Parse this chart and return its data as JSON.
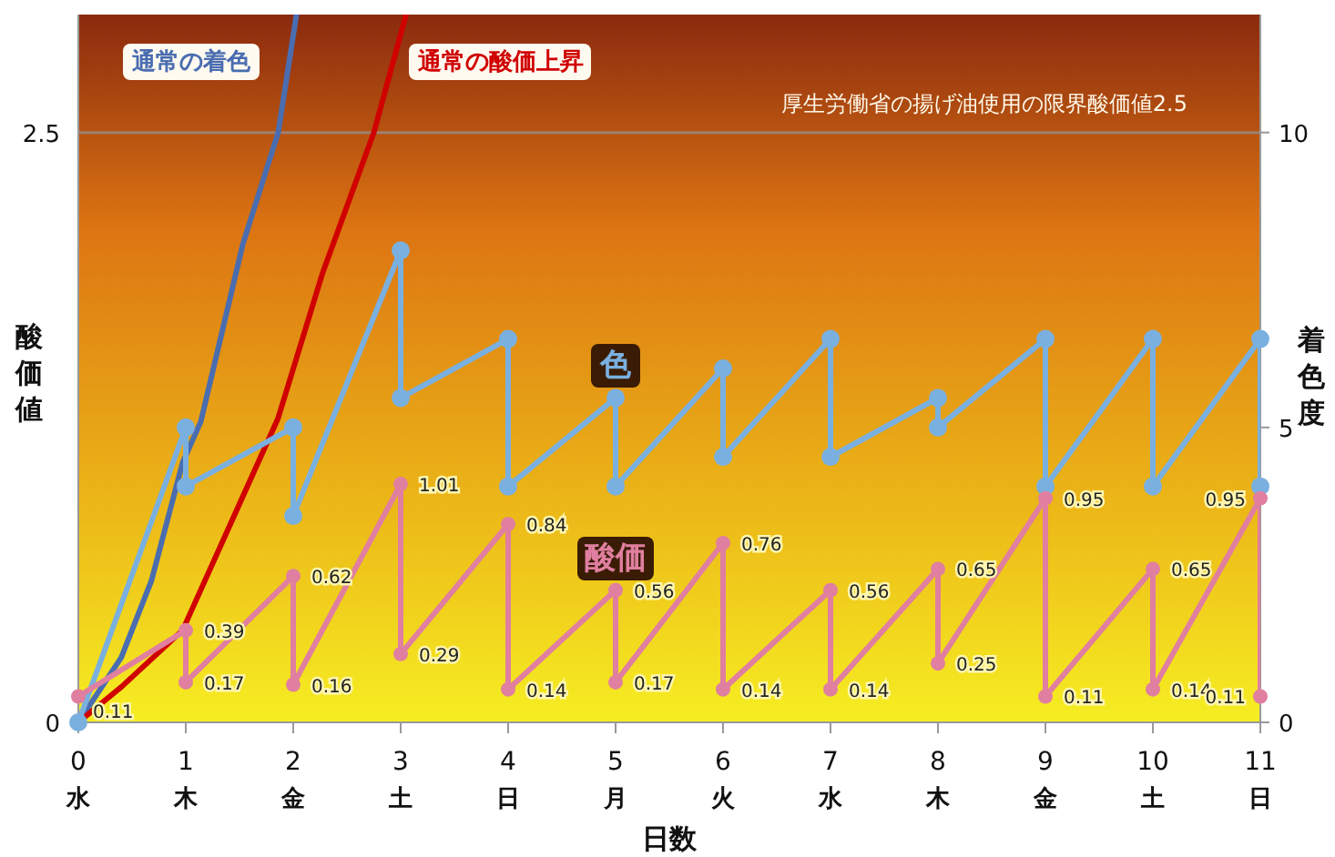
{
  "chart_data": {
    "type": "line",
    "xlabel": "日数",
    "ylabel": "酸価値",
    "y2label": "着色度",
    "xlim": [
      0,
      11
    ],
    "xticks": [
      {
        "value": 0,
        "label": "0\n水"
      },
      {
        "value": 1,
        "label": "1\n木"
      },
      {
        "value": 2,
        "label": "2\n金"
      },
      {
        "value": 3,
        "label": "3\n土"
      },
      {
        "value": 4,
        "label": "4\n日"
      },
      {
        "value": 5,
        "label": "5\n月"
      },
      {
        "value": 6,
        "label": "6\n火"
      },
      {
        "value": 7,
        "label": "7\n水"
      },
      {
        "value": 8,
        "label": "8\n木"
      },
      {
        "value": 9,
        "label": "9\n金"
      },
      {
        "value": 10,
        "label": "10\n土"
      },
      {
        "value": 11,
        "label": "11\n日"
      }
    ],
    "ylim": [
      0,
      3
    ],
    "yticks": [
      0,
      2.5
    ],
    "y2lim": [
      0,
      12
    ],
    "y2ticks": [
      0,
      5,
      10
    ],
    "grid": false,
    "legend": false,
    "ref_lines": [
      {
        "axis": "y",
        "value": 2.5,
        "label": "厚生労働省の揚げ油使用の限界酸価値2.5",
        "color": "#a08070"
      }
    ],
    "series": [
      {
        "name": "通常の着色",
        "color": "#4a6db0",
        "axis": "y2",
        "marker": "none",
        "x": [
          0,
          0.4,
          0.68,
          0.97,
          1.14,
          1.53,
          1.86,
          2.03
        ],
        "values": [
          0,
          1.1,
          2.4,
          4.4,
          5.1,
          8.1,
          10,
          12
        ]
      },
      {
        "name": "通常の酸価上昇",
        "color": "#d00000",
        "marker": "none",
        "x": [
          0,
          0.4,
          0.97,
          1.86,
          2.27,
          2.75,
          3.05
        ],
        "values": [
          0,
          0.15,
          0.39,
          1.29,
          1.9,
          2.5,
          3
        ]
      },
      {
        "name": "色",
        "color": "#7ab0e0",
        "axis": "y2",
        "marker": "circle",
        "x": [
          0,
          1,
          1,
          2,
          2,
          3,
          3,
          4,
          4,
          5,
          5,
          6,
          6,
          7,
          7,
          8,
          8,
          9,
          9,
          10,
          10,
          11,
          11
        ],
        "values": [
          0,
          5,
          4,
          5,
          3.5,
          8,
          5.5,
          6.5,
          4,
          5.5,
          4,
          6,
          4.5,
          6.5,
          4.5,
          5.5,
          5,
          6.5,
          4,
          6.5,
          4,
          6.5,
          4
        ]
      },
      {
        "name": "酸価",
        "color": "#e07fa0",
        "marker": "circle",
        "x": [
          0,
          1,
          1,
          2,
          2,
          3,
          3,
          4,
          4,
          5,
          5,
          6,
          6,
          7,
          7,
          8,
          8,
          9,
          9,
          10,
          10,
          11,
          11
        ],
        "values": [
          0.11,
          0.39,
          0.17,
          0.62,
          0.16,
          1.01,
          0.29,
          0.84,
          0.14,
          0.56,
          0.17,
          0.76,
          0.14,
          0.56,
          0.14,
          0.65,
          0.25,
          0.95,
          0.11,
          0.65,
          0.14,
          0.95,
          0.11
        ],
        "value_labels": [
          "0.11",
          "0.39",
          "0.17",
          "0.62",
          "0.16",
          "1.01",
          "0.29",
          "0.84",
          "0.14",
          "0.56",
          "0.17",
          "0.76",
          "0.14",
          "0.56",
          "0.14",
          "0.65",
          "0.25",
          "0.95",
          "0.11",
          "0.65",
          "0.14",
          "0.95",
          "0.11"
        ]
      }
    ]
  }
}
